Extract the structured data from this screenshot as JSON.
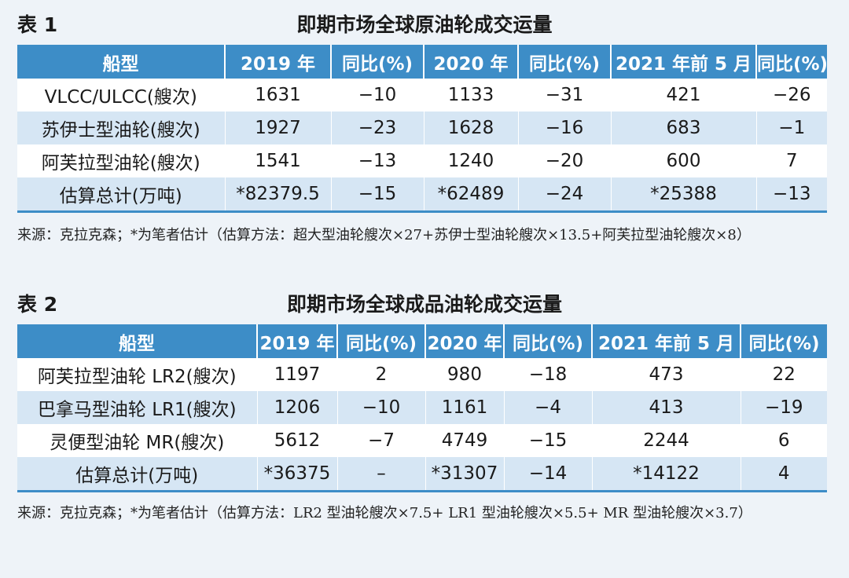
{
  "table1": {
    "number": "表 1",
    "title": "即期市场全球原油轮成交运量",
    "headers": [
      "船型",
      "2019 年",
      "同比(%)",
      "2020 年",
      "同比(%)",
      "2021 年前 5 月",
      "同比(%)"
    ],
    "rows": [
      [
        "VLCC/ULCC(艘次)",
        "1631",
        "−10",
        "1133",
        "−31",
        "421",
        "−26"
      ],
      [
        "苏伊士型油轮(艘次)",
        "1927",
        "−23",
        "1628",
        "−16",
        "683",
        "−1"
      ],
      [
        "阿芙拉型油轮(艘次)",
        "1541",
        "−13",
        "1240",
        "−20",
        "600",
        "7"
      ],
      [
        "估算总计(万吨)",
        "*82379.5",
        "−15",
        "*62489",
        "−24",
        "*25388",
        "−13"
      ]
    ],
    "note": "来源：克拉克森；*为笔者估计（估算方法：超大型油轮艘次×27+苏伊士型油轮艘次×13.5+阿芙拉型油轮艘次×8）"
  },
  "table2": {
    "number": "表 2",
    "title": "即期市场全球成品油轮成交运量",
    "headers": [
      "船型",
      "2019 年",
      "同比(%)",
      "2020 年",
      "同比(%)",
      "2021 年前 5 月",
      "同比(%)"
    ],
    "rows": [
      [
        "阿芙拉型油轮 LR2(艘次)",
        "1197",
        "2",
        "980",
        "−18",
        "473",
        "22"
      ],
      [
        "巴拿马型油轮 LR1(艘次)",
        "1206",
        "−10",
        "1161",
        "−4",
        "413",
        "−19"
      ],
      [
        "灵便型油轮 MR(艘次)",
        "5612",
        "−7",
        "4749",
        "−15",
        "2244",
        "6"
      ],
      [
        "估算总计(万吨)",
        "*36375",
        "–",
        "*31307",
        "−14",
        "*14122",
        "4"
      ]
    ],
    "note": "来源：克拉克森；*为笔者估计（估算方法：LR2 型油轮艘次×7.5+ LR1 型油轮艘次×5.5+ MR 型油轮艘次×3.7）"
  }
}
